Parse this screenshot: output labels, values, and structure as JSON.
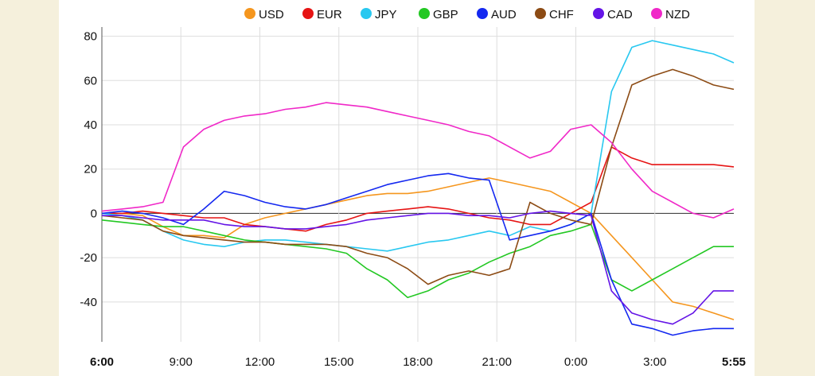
{
  "chart_data": {
    "type": "line",
    "title": "",
    "xlabel": "",
    "ylabel": "",
    "ylim": [
      -58,
      82
    ],
    "yticks": [
      80,
      60,
      40,
      20,
      0,
      -20,
      -40
    ],
    "xticks": [
      {
        "label": "6:00",
        "bold": true
      },
      {
        "label": "9:00",
        "bold": false
      },
      {
        "label": "12:00",
        "bold": false
      },
      {
        "label": "15:00",
        "bold": false
      },
      {
        "label": "18:00",
        "bold": false
      },
      {
        "label": "21:00",
        "bold": false
      },
      {
        "label": "0:00",
        "bold": false
      },
      {
        "label": "3:00",
        "bold": false
      },
      {
        "label": "5:55",
        "bold": true
      }
    ],
    "grid": true,
    "legend_position": "top",
    "series": [
      {
        "name": "USD",
        "color": "#f5961e",
        "values": [
          0,
          0,
          -1,
          -6,
          -10,
          -10,
          -11,
          -5,
          -2,
          0,
          2,
          4,
          6,
          8,
          9,
          9,
          10,
          12,
          14,
          16,
          14,
          12,
          10,
          5,
          0,
          -10,
          -20,
          -30,
          -40,
          -42,
          -45,
          -48
        ]
      },
      {
        "name": "EUR",
        "color": "#e61414",
        "values": [
          0,
          0,
          1,
          0,
          -1,
          -2,
          -2,
          -5,
          -6,
          -7,
          -8,
          -5,
          -3,
          0,
          1,
          2,
          3,
          2,
          0,
          -2,
          -3,
          -5,
          -5,
          0,
          5,
          30,
          25,
          22,
          22,
          22,
          22,
          21
        ]
      },
      {
        "name": "JPY",
        "color": "#28c8f0",
        "values": [
          0,
          -1,
          -3,
          -8,
          -12,
          -14,
          -15,
          -13,
          -12,
          -12,
          -13,
          -14,
          -15,
          -16,
          -17,
          -15,
          -13,
          -12,
          -10,
          -8,
          -10,
          -6,
          -8,
          -5,
          0,
          55,
          75,
          78,
          76,
          74,
          72,
          68
        ]
      },
      {
        "name": "GBP",
        "color": "#23c823",
        "values": [
          -3,
          -4,
          -5,
          -6,
          -6,
          -8,
          -10,
          -12,
          -13,
          -14,
          -15,
          -16,
          -18,
          -25,
          -30,
          -38,
          -35,
          -30,
          -27,
          -22,
          -18,
          -15,
          -10,
          -8,
          -5,
          -30,
          -35,
          -30,
          -25,
          -20,
          -15,
          -15
        ]
      },
      {
        "name": "AUD",
        "color": "#1428f0",
        "values": [
          0,
          1,
          0,
          -2,
          -5,
          2,
          10,
          8,
          5,
          3,
          2,
          4,
          7,
          10,
          13,
          15,
          17,
          18,
          16,
          15,
          -12,
          -10,
          -8,
          -5,
          0,
          -30,
          -50,
          -52,
          -55,
          -53,
          -52,
          -52
        ]
      },
      {
        "name": "CHF",
        "color": "#8c4b14",
        "values": [
          -1,
          -2,
          -3,
          -8,
          -10,
          -11,
          -12,
          -13,
          -13,
          -14,
          -14,
          -14,
          -15,
          -18,
          -20,
          -25,
          -32,
          -28,
          -26,
          -28,
          -25,
          5,
          0,
          -3,
          -5,
          30,
          58,
          62,
          65,
          62,
          58,
          56
        ]
      },
      {
        "name": "CAD",
        "color": "#6414e6",
        "values": [
          -1,
          -1,
          -2,
          -3,
          -3,
          -3,
          -5,
          -6,
          -6,
          -7,
          -7,
          -6,
          -5,
          -3,
          -2,
          -1,
          0,
          0,
          -1,
          -1,
          -2,
          0,
          1,
          0,
          -1,
          -35,
          -45,
          -48,
          -50,
          -45,
          -35,
          -35
        ]
      },
      {
        "name": "NZD",
        "color": "#f028c8",
        "values": [
          1,
          2,
          3,
          5,
          30,
          38,
          42,
          44,
          45,
          47,
          48,
          50,
          49,
          48,
          46,
          44,
          42,
          40,
          37,
          35,
          30,
          25,
          28,
          38,
          40,
          32,
          20,
          10,
          5,
          0,
          -2,
          2
        ]
      }
    ]
  }
}
